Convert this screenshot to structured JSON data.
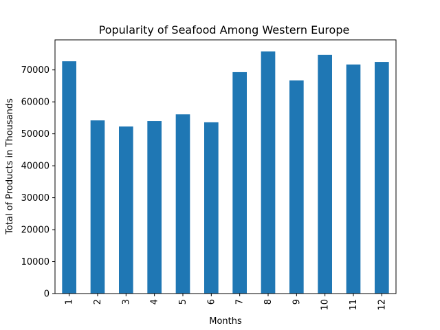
{
  "chart_data": {
    "type": "bar",
    "title": "Popularity of Seafood Among  Western Europe",
    "xlabel": "Months",
    "ylabel": "Total of Products in Thousands",
    "categories": [
      "1",
      "2",
      "3",
      "4",
      "5",
      "6",
      "7",
      "8",
      "9",
      "10",
      "11",
      "12"
    ],
    "values": [
      72700,
      54200,
      52300,
      54000,
      56100,
      53600,
      69300,
      75800,
      66700,
      74700,
      71700,
      72500
    ],
    "ylim": [
      0,
      79400
    ],
    "yticks": [
      0,
      10000,
      20000,
      30000,
      40000,
      50000,
      60000,
      70000
    ],
    "bar_color": "#1f77b4",
    "grid": false,
    "legend": "none"
  }
}
